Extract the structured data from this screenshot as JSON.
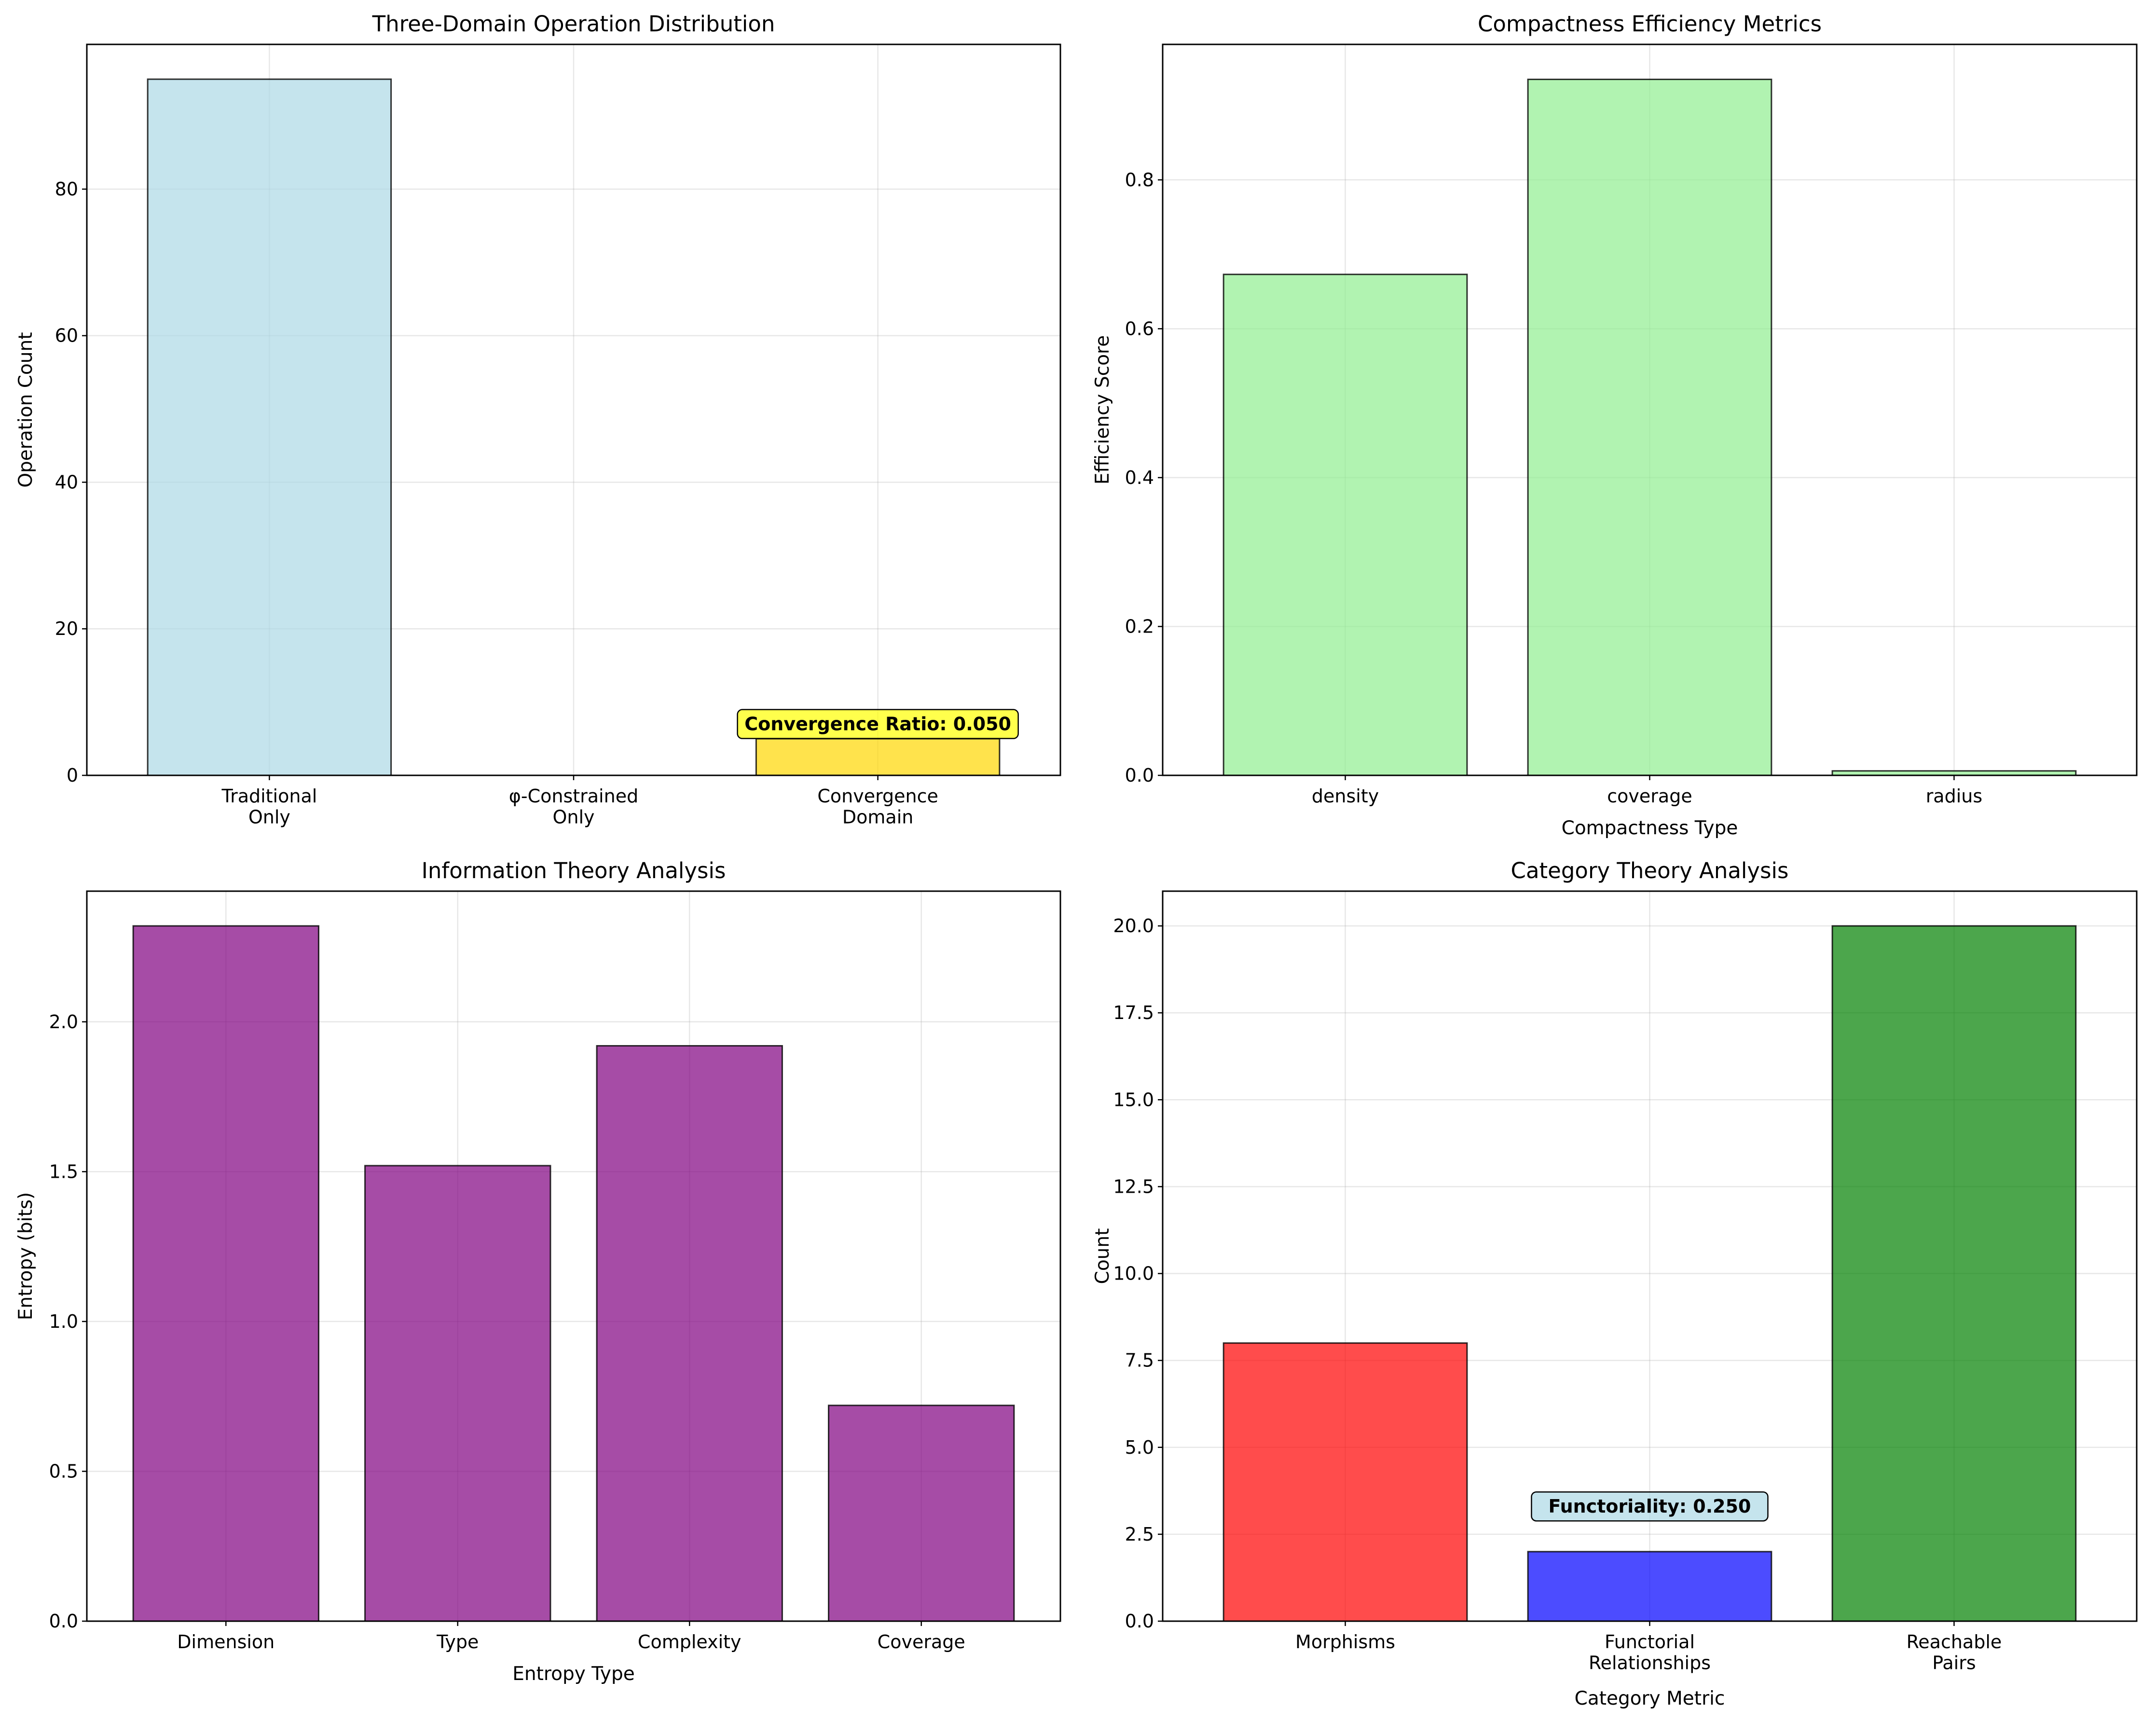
{
  "chart_data": [
    {
      "type": "bar",
      "title": "Three-Domain Operation Distribution",
      "xlabel": "",
      "ylabel": "Operation Count",
      "categories": [
        "Traditional\nOnly",
        "φ-Constrained\nOnly",
        "Convergence\nDomain"
      ],
      "values": [
        95,
        0,
        5
      ],
      "colors": [
        "#add8e6",
        "#90ee90",
        "#ffd700"
      ],
      "ylim": [
        0,
        99.75
      ],
      "yticks": [
        0,
        20,
        40,
        60,
        80
      ],
      "ytick_labels": [
        "0",
        "20",
        "40",
        "60",
        "80"
      ],
      "grid": true,
      "annotation": {
        "text": "Convergence Ratio: 0.050",
        "category": 2,
        "y": 7,
        "bg": "#ffff00"
      }
    },
    {
      "type": "bar",
      "title": "Compactness Efficiency Metrics",
      "xlabel": "Compactness Type",
      "ylabel": "Efficiency Score",
      "categories": [
        "density",
        "coverage",
        "radius"
      ],
      "values": [
        0.673,
        0.935,
        0.006
      ],
      "colors": [
        "#90ee90",
        "#90ee90",
        "#90ee90"
      ],
      "ylim": [
        0,
        0.982
      ],
      "yticks": [
        0,
        0.2,
        0.4,
        0.6,
        0.8
      ],
      "ytick_labels": [
        "0.0",
        "0.2",
        "0.4",
        "0.6",
        "0.8"
      ],
      "grid": true
    },
    {
      "type": "bar",
      "title": "Information Theory Analysis",
      "xlabel": "Entropy Type",
      "ylabel": "Entropy (bits)",
      "categories": [
        "Dimension",
        "Type",
        "Complexity",
        "Coverage"
      ],
      "values": [
        2.32,
        1.52,
        1.92,
        0.72
      ],
      "colors": [
        "#800080",
        "#800080",
        "#800080",
        "#800080"
      ],
      "ylim": [
        0,
        2.436
      ],
      "yticks": [
        0,
        0.5,
        1.0,
        1.5,
        2.0
      ],
      "ytick_labels": [
        "0.0",
        "0.5",
        "1.0",
        "1.5",
        "2.0"
      ],
      "grid": true
    },
    {
      "type": "bar",
      "title": "Category Theory Analysis",
      "xlabel": "Category Metric",
      "ylabel": "Count",
      "categories": [
        "Morphisms",
        "Functorial\nRelationships",
        "Reachable\nPairs"
      ],
      "values": [
        8,
        2,
        20
      ],
      "colors": [
        "#ff0000",
        "#0000ff",
        "#008000"
      ],
      "ylim": [
        0,
        21
      ],
      "yticks": [
        0,
        2.5,
        5.0,
        7.5,
        10.0,
        12.5,
        15.0,
        17.5,
        20.0
      ],
      "ytick_labels": [
        "0.0",
        "2.5",
        "5.0",
        "7.5",
        "10.0",
        "12.5",
        "15.0",
        "17.5",
        "20.0"
      ],
      "grid": true,
      "annotation": {
        "text": "Functoriality: 0.250",
        "category": 1,
        "y": 3.3,
        "bg": "#add8e6"
      }
    }
  ]
}
